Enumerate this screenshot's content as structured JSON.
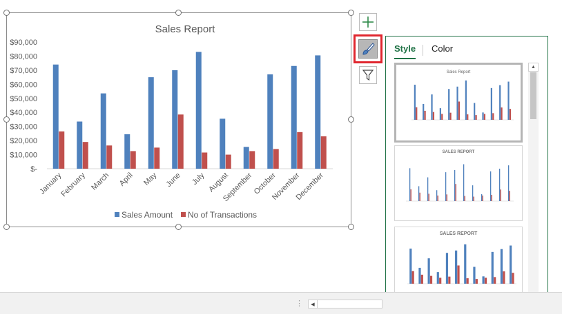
{
  "chart_data": {
    "type": "bar",
    "title": "Sales Report",
    "categories": [
      "January",
      "February",
      "March",
      "April",
      "May",
      "June",
      "July",
      "August",
      "September",
      "October",
      "November",
      "December"
    ],
    "series": [
      {
        "name": "Sales Amount",
        "color": "#4f81bd",
        "values": [
          74000,
          33500,
          53500,
          24500,
          65000,
          70000,
          83000,
          35500,
          15500,
          67000,
          73000,
          80500
        ]
      },
      {
        "name": "No of Transactions",
        "color": "#c0504d",
        "values": [
          26500,
          19000,
          16500,
          12500,
          15000,
          38500,
          11500,
          10000,
          12500,
          14000,
          26000,
          23000
        ]
      }
    ],
    "ylim": [
      0,
      90000
    ],
    "yticks": [
      "$-",
      "$10,000",
      "$20,000",
      "$30,000",
      "$40,000",
      "$50,000",
      "$60,000",
      "$70,000",
      "$80,000",
      "$90,000"
    ],
    "legend_position": "bottom",
    "grid": false
  },
  "chart_tools": {
    "elements_icon": "plus-icon",
    "styles_icon": "paintbrush-icon",
    "filters_icon": "funnel-icon"
  },
  "style_panel": {
    "tabs": [
      {
        "label": "Style",
        "active": true
      },
      {
        "label": "Color",
        "active": false
      }
    ],
    "thumbnails": [
      {
        "title": "Sales Report",
        "selected": true
      },
      {
        "title": "SALES REPORT",
        "selected": false
      },
      {
        "title": "SALES REPORT",
        "selected": false
      }
    ]
  }
}
